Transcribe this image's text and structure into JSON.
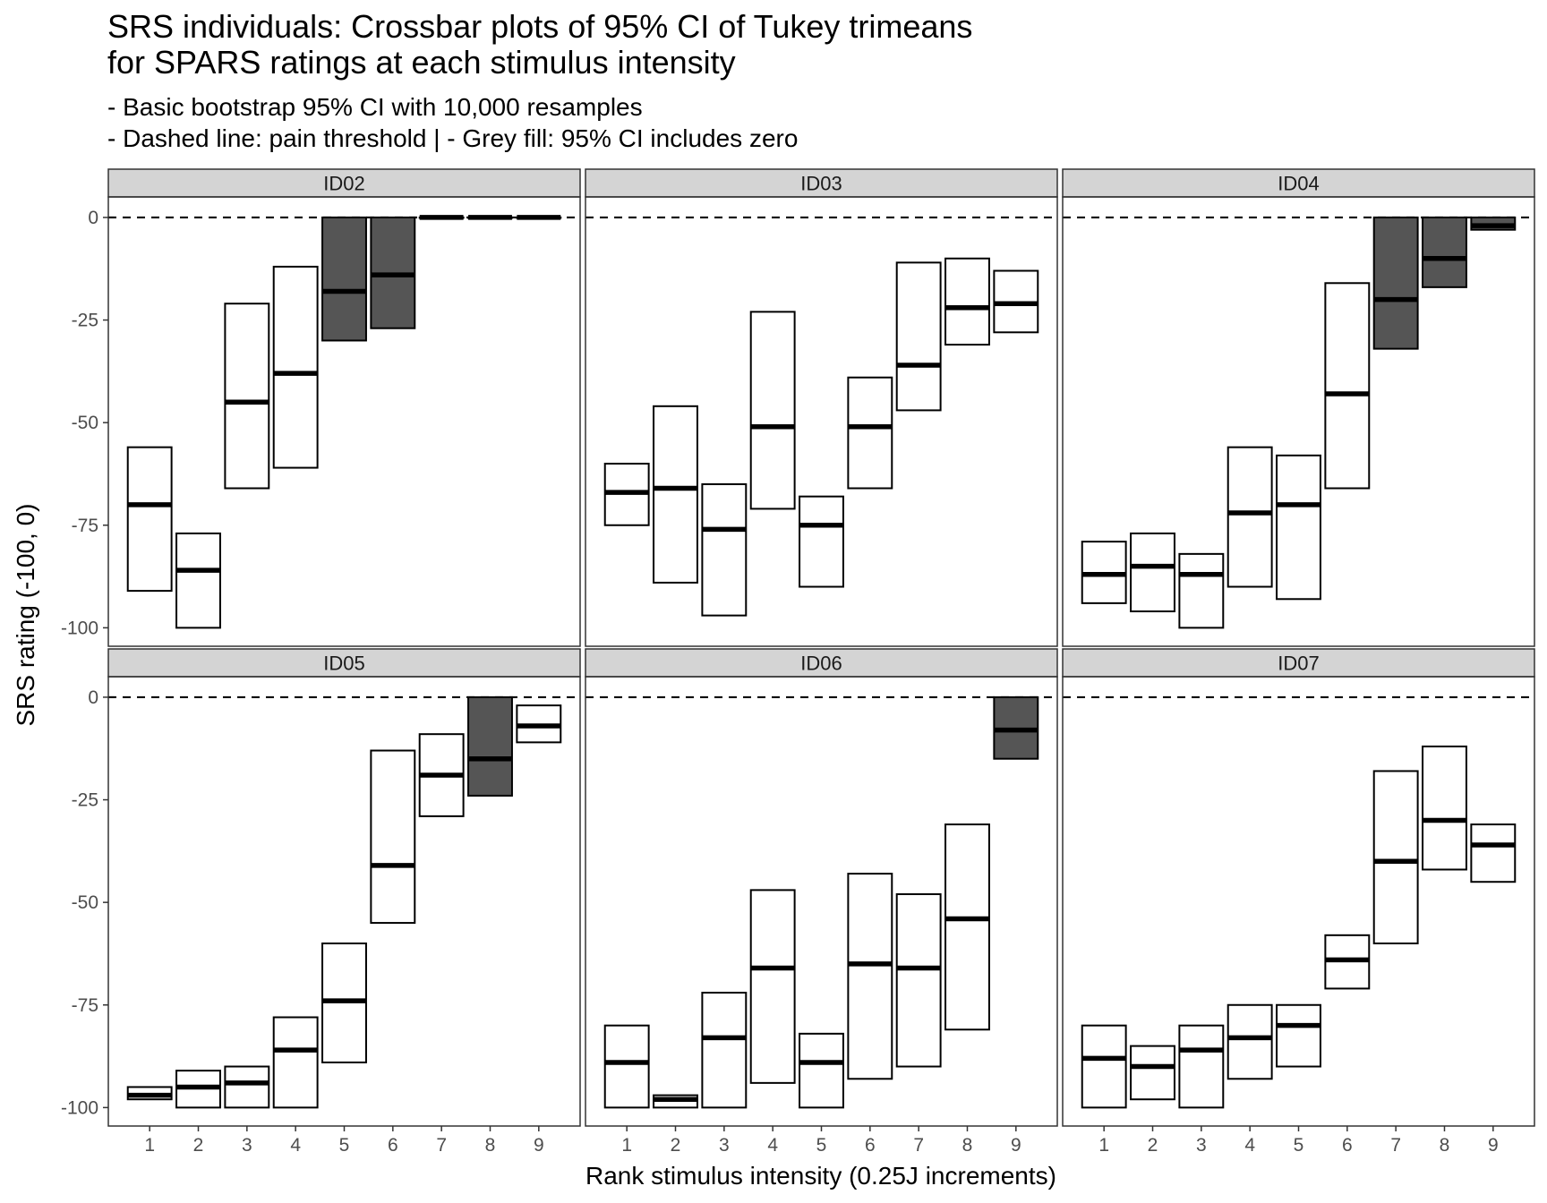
{
  "chart_data": {
    "type": "crossbar",
    "title_lines": [
      "SRS individuals: Crossbar plots of 95% CI of Tukey trimeans",
      "for SPARS ratings at each stimulus intensity"
    ],
    "subtitle_lines": [
      "- Basic bootstrap 95% CI with 10,000 resamples",
      "- Dashed line: pain threshold | - Grey fill: 95% CI includes zero"
    ],
    "xlabel": "Rank stimulus intensity (0.25J increments)",
    "ylabel": "SRS rating (-100, 0)",
    "x_ticks": [
      "1",
      "2",
      "3",
      "4",
      "5",
      "6",
      "7",
      "8",
      "9"
    ],
    "y_ticks": [
      0,
      -25,
      -50,
      -75,
      -100
    ],
    "y_tick_labels": [
      "0",
      "-25",
      "-50",
      "-75",
      "-100"
    ],
    "ylim": [
      -104.5,
      5
    ],
    "threshold": 0,
    "grid": false,
    "colors": {
      "zero_fill": "#555555",
      "open_fill": "#ffffff",
      "strip": "#d4d4d4"
    },
    "panels": [
      {
        "id": "ID02",
        "bars": [
          {
            "x": 1,
            "ymin": -91,
            "y": -70,
            "ymax": -56,
            "includes_zero": false
          },
          {
            "x": 2,
            "ymin": -100,
            "y": -86,
            "ymax": -77,
            "includes_zero": false
          },
          {
            "x": 3,
            "ymin": -66,
            "y": -45,
            "ymax": -21,
            "includes_zero": false
          },
          {
            "x": 4,
            "ymin": -61,
            "y": -38,
            "ymax": -12,
            "includes_zero": false
          },
          {
            "x": 5,
            "ymin": -30,
            "y": -18,
            "ymax": 0,
            "includes_zero": true
          },
          {
            "x": 6,
            "ymin": -27,
            "y": -14,
            "ymax": 0,
            "includes_zero": true
          },
          {
            "x": 7,
            "ymin": 0,
            "y": 0,
            "ymax": 0,
            "includes_zero": true
          },
          {
            "x": 8,
            "ymin": 0,
            "y": 0,
            "ymax": 0,
            "includes_zero": true
          },
          {
            "x": 9,
            "ymin": 0,
            "y": 0,
            "ymax": 0,
            "includes_zero": true
          }
        ]
      },
      {
        "id": "ID03",
        "bars": [
          {
            "x": 1,
            "ymin": -75,
            "y": -67,
            "ymax": -60,
            "includes_zero": false
          },
          {
            "x": 2,
            "ymin": -89,
            "y": -66,
            "ymax": -46,
            "includes_zero": false
          },
          {
            "x": 3,
            "ymin": -97,
            "y": -76,
            "ymax": -65,
            "includes_zero": false
          },
          {
            "x": 4,
            "ymin": -71,
            "y": -51,
            "ymax": -23,
            "includes_zero": false
          },
          {
            "x": 5,
            "ymin": -90,
            "y": -75,
            "ymax": -68,
            "includes_zero": false
          },
          {
            "x": 6,
            "ymin": -66,
            "y": -51,
            "ymax": -39,
            "includes_zero": false
          },
          {
            "x": 7,
            "ymin": -47,
            "y": -36,
            "ymax": -11,
            "includes_zero": false
          },
          {
            "x": 8,
            "ymin": -31,
            "y": -22,
            "ymax": -10,
            "includes_zero": false
          },
          {
            "x": 9,
            "ymin": -28,
            "y": -21,
            "ymax": -13,
            "includes_zero": false
          }
        ]
      },
      {
        "id": "ID04",
        "bars": [
          {
            "x": 1,
            "ymin": -94,
            "y": -87,
            "ymax": -79,
            "includes_zero": false
          },
          {
            "x": 2,
            "ymin": -96,
            "y": -85,
            "ymax": -77,
            "includes_zero": false
          },
          {
            "x": 3,
            "ymin": -100,
            "y": -87,
            "ymax": -82,
            "includes_zero": false
          },
          {
            "x": 4,
            "ymin": -90,
            "y": -72,
            "ymax": -56,
            "includes_zero": false
          },
          {
            "x": 5,
            "ymin": -93,
            "y": -70,
            "ymax": -58,
            "includes_zero": false
          },
          {
            "x": 6,
            "ymin": -66,
            "y": -43,
            "ymax": -16,
            "includes_zero": false
          },
          {
            "x": 7,
            "ymin": -32,
            "y": -20,
            "ymax": 0,
            "includes_zero": true
          },
          {
            "x": 8,
            "ymin": -17,
            "y": -10,
            "ymax": 0,
            "includes_zero": true
          },
          {
            "x": 9,
            "ymin": -3,
            "y": -2,
            "ymax": 0,
            "includes_zero": true
          }
        ]
      },
      {
        "id": "ID05",
        "bars": [
          {
            "x": 1,
            "ymin": -98,
            "y": -97,
            "ymax": -95,
            "includes_zero": false
          },
          {
            "x": 2,
            "ymin": -100,
            "y": -95,
            "ymax": -91,
            "includes_zero": false
          },
          {
            "x": 3,
            "ymin": -100,
            "y": -94,
            "ymax": -90,
            "includes_zero": false
          },
          {
            "x": 4,
            "ymin": -100,
            "y": -86,
            "ymax": -78,
            "includes_zero": false
          },
          {
            "x": 5,
            "ymin": -89,
            "y": -74,
            "ymax": -60,
            "includes_zero": false
          },
          {
            "x": 6,
            "ymin": -55,
            "y": -41,
            "ymax": -13,
            "includes_zero": false
          },
          {
            "x": 7,
            "ymin": -29,
            "y": -19,
            "ymax": -9,
            "includes_zero": false
          },
          {
            "x": 8,
            "ymin": -24,
            "y": -15,
            "ymax": 0,
            "includes_zero": true
          },
          {
            "x": 9,
            "ymin": -11,
            "y": -7,
            "ymax": -2,
            "includes_zero": false
          }
        ]
      },
      {
        "id": "ID06",
        "bars": [
          {
            "x": 1,
            "ymin": -100,
            "y": -89,
            "ymax": -80,
            "includes_zero": false
          },
          {
            "x": 2,
            "ymin": -100,
            "y": -98,
            "ymax": -97,
            "includes_zero": false
          },
          {
            "x": 3,
            "ymin": -100,
            "y": -83,
            "ymax": -72,
            "includes_zero": false
          },
          {
            "x": 4,
            "ymin": -94,
            "y": -66,
            "ymax": -47,
            "includes_zero": false
          },
          {
            "x": 5,
            "ymin": -100,
            "y": -89,
            "ymax": -82,
            "includes_zero": false
          },
          {
            "x": 6,
            "ymin": -93,
            "y": -65,
            "ymax": -43,
            "includes_zero": false
          },
          {
            "x": 7,
            "ymin": -90,
            "y": -66,
            "ymax": -48,
            "includes_zero": false
          },
          {
            "x": 8,
            "ymin": -81,
            "y": -54,
            "ymax": -31,
            "includes_zero": false
          },
          {
            "x": 9,
            "ymin": -15,
            "y": -8,
            "ymax": 0,
            "includes_zero": true
          }
        ]
      },
      {
        "id": "ID07",
        "bars": [
          {
            "x": 1,
            "ymin": -100,
            "y": -88,
            "ymax": -80,
            "includes_zero": false
          },
          {
            "x": 2,
            "ymin": -98,
            "y": -90,
            "ymax": -85,
            "includes_zero": false
          },
          {
            "x": 3,
            "ymin": -100,
            "y": -86,
            "ymax": -80,
            "includes_zero": false
          },
          {
            "x": 4,
            "ymin": -93,
            "y": -83,
            "ymax": -75,
            "includes_zero": false
          },
          {
            "x": 5,
            "ymin": -90,
            "y": -80,
            "ymax": -75,
            "includes_zero": false
          },
          {
            "x": 6,
            "ymin": -71,
            "y": -64,
            "ymax": -58,
            "includes_zero": false
          },
          {
            "x": 7,
            "ymin": -60,
            "y": -40,
            "ymax": -18,
            "includes_zero": false
          },
          {
            "x": 8,
            "ymin": -42,
            "y": -30,
            "ymax": -12,
            "includes_zero": false
          },
          {
            "x": 9,
            "ymin": -45,
            "y": -36,
            "ymax": -31,
            "includes_zero": false
          }
        ]
      }
    ]
  }
}
